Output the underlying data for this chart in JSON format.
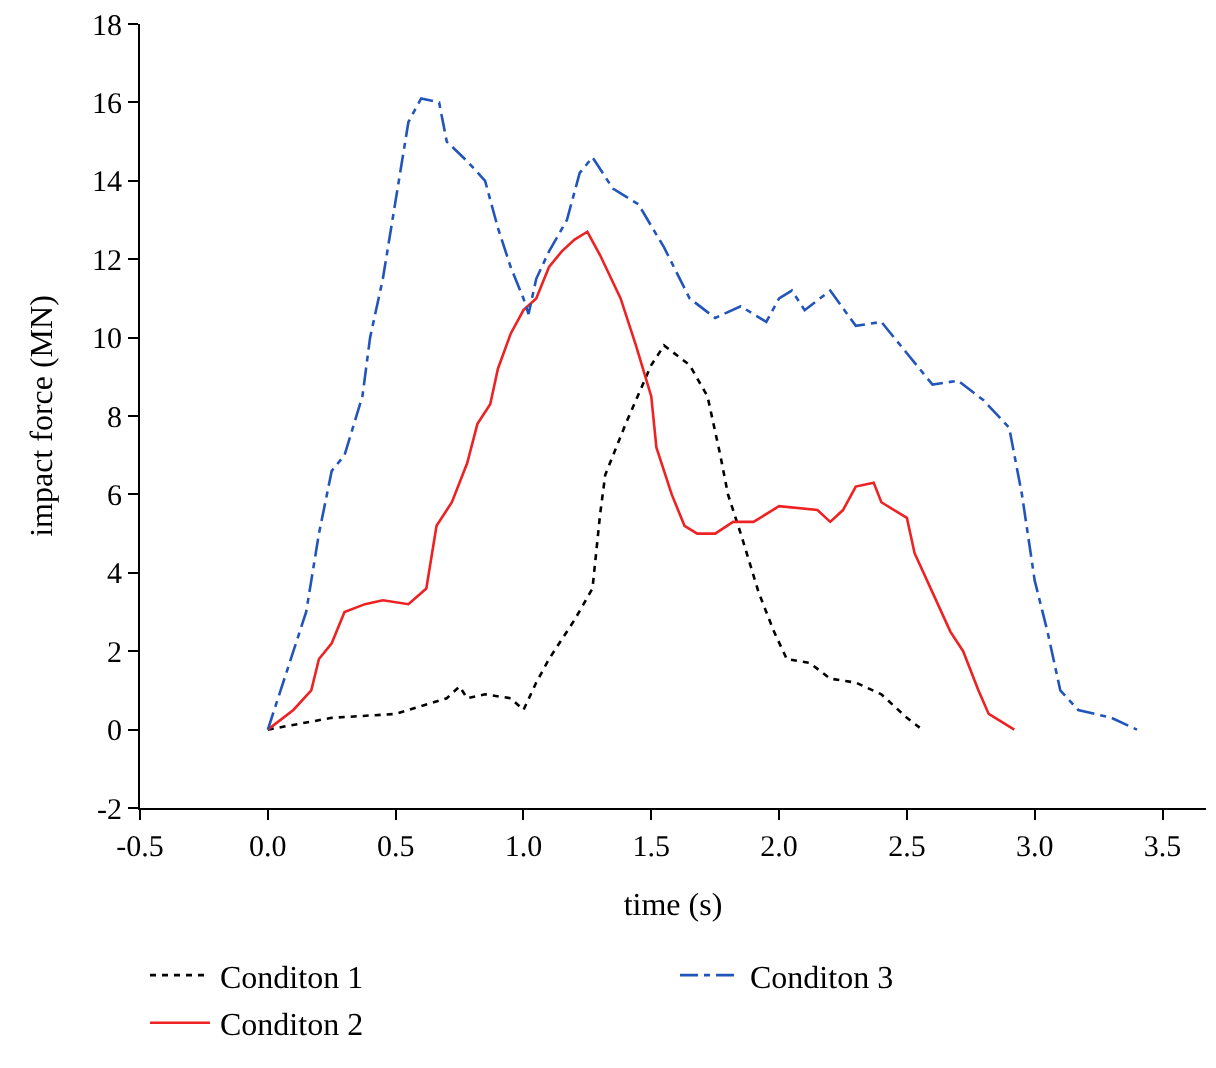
{
  "chart_data": {
    "type": "line",
    "xlabel": "time (s)",
    "ylabel": "impact force (MN)",
    "xlim": [
      -0.5,
      3.67
    ],
    "xticks": [
      -0.5,
      {
        "value": 0,
        "label": "0.0"
      },
      0.5,
      {
        "value": 1,
        "label": "1.0"
      },
      1.5,
      {
        "value": 2,
        "label": "2.0"
      },
      2.5,
      {
        "value": 3,
        "label": "3.0"
      },
      3.5
    ],
    "ylim": [
      -2,
      18
    ],
    "yticks": [
      -2,
      0,
      2,
      4,
      6,
      8,
      10,
      12,
      14,
      16,
      18
    ],
    "legend": "bottom",
    "marker": "none",
    "series": [
      {
        "name": "Conditon 1",
        "color": "#000000",
        "line_style": "dotted",
        "x": [
          0,
          0.25,
          0.5,
          0.6,
          0.7,
          0.75,
          0.78,
          0.85,
          0.95,
          1.0,
          1.05,
          1.1,
          1.2,
          1.27,
          1.3,
          1.32,
          1.4,
          1.5,
          1.55,
          1.65,
          1.72,
          1.77,
          1.8,
          1.85,
          1.92,
          1.98,
          2.03,
          2.12,
          2.2,
          2.3,
          2.4,
          2.5,
          2.55
        ],
        "values": [
          0,
          0.3,
          0.4,
          0.6,
          0.8,
          1.1,
          0.8,
          0.9,
          0.8,
          0.5,
          1.2,
          1.8,
          2.8,
          3.6,
          5.5,
          6.5,
          7.8,
          9.3,
          9.8,
          9.3,
          8.5,
          7.0,
          6.0,
          5.0,
          3.5,
          2.5,
          1.8,
          1.7,
          1.3,
          1.2,
          0.9,
          0.3,
          0.05
        ]
      },
      {
        "name": "Conditon 2",
        "color": "#ee2222",
        "line_style": "solid",
        "x": [
          0,
          0.1,
          0.17,
          0.2,
          0.25,
          0.3,
          0.38,
          0.45,
          0.55,
          0.62,
          0.66,
          0.72,
          0.78,
          0.82,
          0.87,
          0.9,
          0.95,
          1.0,
          1.05,
          1.1,
          1.15,
          1.2,
          1.25,
          1.3,
          1.38,
          1.44,
          1.5,
          1.52,
          1.58,
          1.63,
          1.68,
          1.75,
          1.82,
          1.9,
          2.0,
          2.15,
          2.2,
          2.25,
          2.3,
          2.37,
          2.4,
          2.5,
          2.53,
          2.6,
          2.67,
          2.72,
          2.78,
          2.82,
          2.92
        ],
        "values": [
          0,
          0.5,
          1.0,
          1.8,
          2.2,
          3.0,
          3.2,
          3.3,
          3.2,
          3.6,
          5.2,
          5.8,
          6.8,
          7.8,
          8.3,
          9.2,
          10.1,
          10.7,
          11.0,
          11.8,
          12.2,
          12.5,
          12.7,
          12.1,
          11.0,
          9.8,
          8.5,
          7.2,
          6.0,
          5.2,
          5.0,
          5.0,
          5.3,
          5.3,
          5.7,
          5.6,
          5.3,
          5.6,
          6.2,
          6.3,
          5.8,
          5.4,
          4.5,
          3.5,
          2.5,
          2.0,
          1.0,
          0.4,
          0.0
        ]
      },
      {
        "name": "Conditon 3",
        "color": "#2255bb",
        "line_style": "dashdot",
        "x": [
          0,
          0.05,
          0.1,
          0.15,
          0.2,
          0.25,
          0.3,
          0.37,
          0.4,
          0.45,
          0.5,
          0.55,
          0.6,
          0.67,
          0.7,
          0.78,
          0.85,
          0.9,
          0.95,
          1.0,
          1.02,
          1.05,
          1.1,
          1.17,
          1.22,
          1.27,
          1.35,
          1.45,
          1.55,
          1.65,
          1.75,
          1.85,
          1.95,
          2.0,
          2.05,
          2.1,
          2.2,
          2.3,
          2.4,
          2.5,
          2.6,
          2.7,
          2.8,
          2.9,
          2.95,
          3.0,
          3.05,
          3.1,
          3.17,
          3.3,
          3.4
        ],
        "values": [
          0,
          1.0,
          2.0,
          3.0,
          5.0,
          6.6,
          7.0,
          8.5,
          10.0,
          11.5,
          13.5,
          15.5,
          16.1,
          16.0,
          15.0,
          14.5,
          14.0,
          12.8,
          11.8,
          11.0,
          10.6,
          11.5,
          12.2,
          13.0,
          14.2,
          14.6,
          13.8,
          13.4,
          12.3,
          11.0,
          10.5,
          10.8,
          10.4,
          11.0,
          11.2,
          10.7,
          11.2,
          10.3,
          10.4,
          9.6,
          8.8,
          8.9,
          8.4,
          7.7,
          6.0,
          3.8,
          2.5,
          1.0,
          0.5,
          0.3,
          0.0
        ]
      }
    ]
  }
}
